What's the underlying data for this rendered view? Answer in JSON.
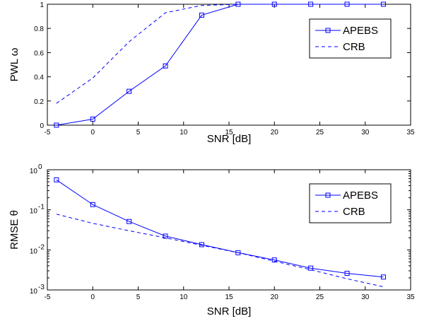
{
  "chart_data": [
    {
      "type": "line",
      "xlabel": "SNR [dB]",
      "ylabel": "PWL ω",
      "xlim": [
        -5,
        35
      ],
      "ylim": [
        0,
        1
      ],
      "yscale": "linear",
      "x_ticks": [
        -5,
        0,
        5,
        10,
        15,
        20,
        25,
        30,
        35
      ],
      "y_ticks": [
        0,
        0.2,
        0.4,
        0.6,
        0.8,
        1
      ],
      "y_tick_labels": [
        "0",
        "0.2",
        "0.4",
        "0.6",
        "0.8",
        "1"
      ],
      "legend_position": "top-right",
      "series": [
        {
          "name": "APEBS",
          "style": "solid",
          "marker": "square",
          "color": "#0000ff",
          "x": [
            -4,
            0,
            4,
            8,
            12,
            16,
            20,
            24,
            28,
            32
          ],
          "values": [
            0.0,
            0.05,
            0.28,
            0.49,
            0.91,
            1.0,
            1.0,
            1.0,
            1.0,
            1.0
          ]
        },
        {
          "name": "CRB",
          "style": "dashed",
          "marker": "none",
          "color": "#0000ff",
          "x": [
            -4,
            0,
            4,
            8,
            12,
            16,
            20,
            24,
            28,
            32
          ],
          "values": [
            0.18,
            0.39,
            0.69,
            0.93,
            0.99,
            1.0,
            1.0,
            1.0,
            1.0,
            1.0
          ]
        }
      ]
    },
    {
      "type": "line",
      "xlabel": "SNR [dB]",
      "ylabel": "RMSE θ",
      "xlim": [
        -5,
        35
      ],
      "ylim": [
        0.001,
        1
      ],
      "yscale": "log",
      "x_ticks": [
        -5,
        0,
        5,
        10,
        15,
        20,
        25,
        30,
        35
      ],
      "y_ticks": [
        0.001,
        0.01,
        0.1,
        1
      ],
      "y_tick_labels": [
        {
          "base": "10",
          "exp": "-3"
        },
        {
          "base": "10",
          "exp": "-2"
        },
        {
          "base": "10",
          "exp": "-1"
        },
        {
          "base": "10",
          "exp": "0"
        }
      ],
      "legend_position": "top-right",
      "series": [
        {
          "name": "APEBS",
          "style": "solid",
          "marker": "square",
          "color": "#0000ff",
          "x": [
            -4,
            0,
            4,
            8,
            12,
            16,
            20,
            24,
            28,
            32
          ],
          "values": [
            0.56,
            0.135,
            0.051,
            0.022,
            0.0135,
            0.0085,
            0.0056,
            0.0035,
            0.0026,
            0.0021
          ]
        },
        {
          "name": "CRB",
          "style": "dashed",
          "marker": "none",
          "color": "#0000ff",
          "x": [
            -4,
            0,
            4,
            8,
            12,
            16,
            20,
            24,
            28,
            32
          ],
          "values": [
            0.078,
            0.046,
            0.03,
            0.02,
            0.013,
            0.0085,
            0.0052,
            0.0032,
            0.0019,
            0.0012
          ]
        }
      ]
    }
  ]
}
